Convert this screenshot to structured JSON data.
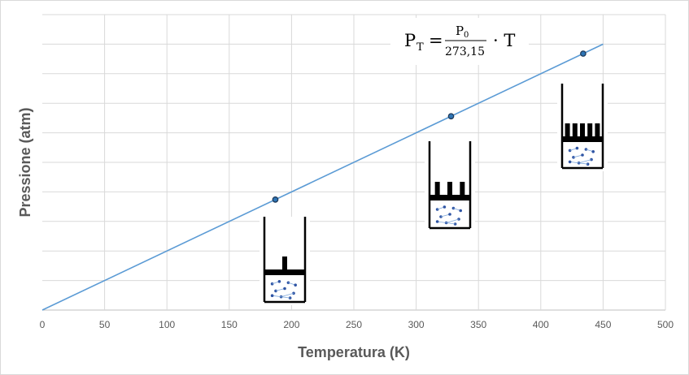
{
  "chart_data": {
    "type": "line",
    "title": "",
    "xlabel": "Temperatura (K)",
    "ylabel": "Pressione (atm)",
    "xlim": [
      0,
      500
    ],
    "ylim": [
      0,
      10
    ],
    "xticks": [
      "0",
      "50",
      "100",
      "150",
      "200",
      "250",
      "300",
      "350",
      "400",
      "450",
      "500"
    ],
    "yticks_shown": false,
    "grid": true,
    "series": [
      {
        "name": "P_T",
        "color": "#5b9bd5",
        "x": [
          0,
          450
        ],
        "y": [
          0,
          9
        ]
      }
    ],
    "points": [
      {
        "x": 187,
        "y": 3.74
      },
      {
        "x": 328,
        "y": 6.56
      },
      {
        "x": 434,
        "y": 8.68
      }
    ],
    "equation": {
      "lhs": "P",
      "lhs_sub": "T",
      "eq": "=",
      "num": "P",
      "num_sub": "0",
      "den": "273,15",
      "rhs": "· T"
    },
    "pistons": [
      {
        "weights": 1
      },
      {
        "weights": 3
      },
      {
        "weights": 5
      }
    ]
  }
}
